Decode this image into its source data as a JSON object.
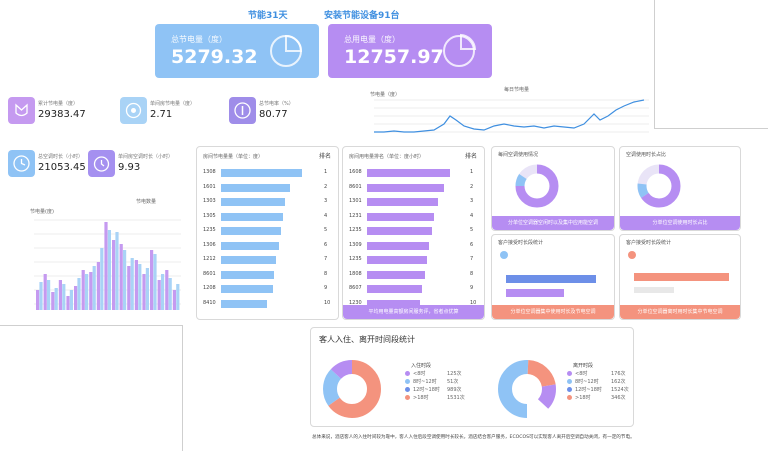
{
  "header": {
    "energy_days": "节能31天",
    "installed_devices": "安装节能设备91台"
  },
  "cards": {
    "saved": {
      "label": "总节电量（度）",
      "value": "5279.32",
      "color": "#8fc3f5"
    },
    "used": {
      "label": "总用电量（度）",
      "value": "12757.97",
      "color": "#b68df2"
    }
  },
  "kpis": [
    {
      "label": "累计节电量（度）",
      "value": "29383.47",
      "color": "#c59af0",
      "icon": "shield-icon"
    },
    {
      "label": "单间房节电量（度）",
      "value": "2.71",
      "color": "#a9d3f6",
      "icon": "target-icon"
    },
    {
      "label": "总节电率（%）",
      "value": "80.77",
      "color": "#9f8de9",
      "icon": "info-icon"
    },
    {
      "label": "总空调时长（小时）",
      "value": "21053.45",
      "color": "#8fc3f5",
      "icon": "clock-icon"
    },
    {
      "label": "单间房空调时长（小时）",
      "value": "9.93",
      "color": "#a590f0",
      "icon": "alarm-icon"
    }
  ],
  "line_chart": {
    "legend": "每日节电量",
    "ylabel": "节电量（度）"
  },
  "bar_chart": {
    "legend": "节电数量",
    "ylabel": "节电量(度)"
  },
  "rank_saved": {
    "title": "房间节电量量（单位：度）",
    "rank_header": "排名",
    "rows": [
      "1308",
      "1601",
      "1303",
      "1305",
      "1235",
      "1306",
      "1212",
      "8601",
      "1208",
      "8410"
    ],
    "ranks": [
      "1",
      "2",
      "3",
      "4",
      "5",
      "6",
      "7",
      "8",
      "9",
      "10"
    ],
    "fills": [
      0.94,
      0.8,
      0.74,
      0.72,
      0.7,
      0.68,
      0.64,
      0.62,
      0.6,
      0.54
    ]
  },
  "rank_used": {
    "title": "房间用电量排名（单位：度小时）",
    "rank_header": "排名",
    "rows": [
      "1608",
      "8601",
      "1301",
      "1231",
      "1235",
      "1309",
      "1235",
      "1808",
      "8607",
      "1230"
    ],
    "ranks": [
      "1",
      "2",
      "3",
      "4",
      "5",
      "6",
      "7",
      "8",
      "9",
      "10"
    ],
    "fills": [
      0.97,
      0.9,
      0.82,
      0.78,
      0.76,
      0.72,
      0.7,
      0.68,
      0.64,
      0.62
    ],
    "footer": "平均用电量高额房间服务评，省者点优算"
  },
  "mini_panels": [
    {
      "title": "每间空调使用情况",
      "footer": "分单位空调器空闲时以及集中应用能空调",
      "color": "#b68df2"
    },
    {
      "title": "空调使用时长占比",
      "footer": "分单位空调使用时长占比",
      "color": "#b68df2"
    },
    {
      "title": "客户接受时长段统计",
      "footer": "分单位空调器集中使用时长及节电空调",
      "color": "#f4937e"
    },
    {
      "title": "客户接受时长段统计",
      "footer": "分单位空调器离时用时长集中节电空调",
      "color": "#f4937e"
    }
  ],
  "checkin": {
    "title": "客人入住、离开时间段统计",
    "in_title": "入住时段",
    "in_rows": [
      {
        "label": "<8时",
        "value": "125次"
      },
      {
        "label": "8时~12时",
        "value": "51次"
      },
      {
        "label": "12时~18时",
        "value": "989次"
      },
      {
        "label": ">18时",
        "value": "1531次"
      }
    ],
    "out_title": "离开时段",
    "out_rows": [
      {
        "label": "<8时",
        "value": "176次"
      },
      {
        "label": "8时~12时",
        "value": "162次"
      },
      {
        "label": "12时~18时",
        "value": "1524次"
      },
      {
        "label": ">18时",
        "value": "346次"
      }
    ],
    "colors": [
      "#b68df2",
      "#8fc3f5",
      "#6d8fe8",
      "#f4937e"
    ]
  },
  "footnote": "总体来说，酒店客人的入住时间较为靠中，客人入住后段空调使用时长较长。酒店结合客户服务，ECOCOS可以实现客人离开后空调自动关闭，有一定的节电。"
}
